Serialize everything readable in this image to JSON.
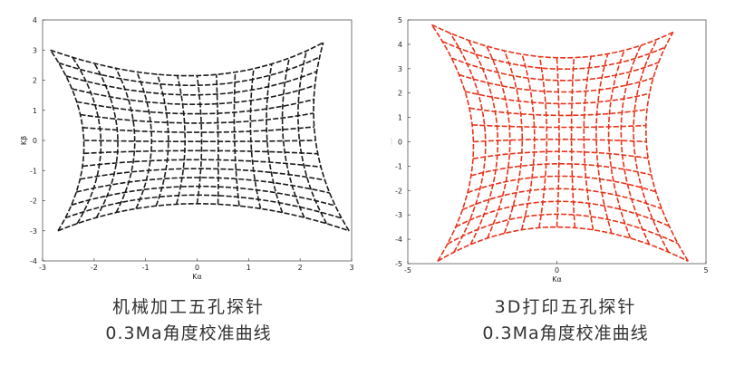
{
  "chart_data": [
    {
      "type": "line",
      "id": "left",
      "color": "#1a1a1a",
      "xlabel": "Kα",
      "ylabel": "Kβ",
      "xlim": [
        -3,
        3
      ],
      "ylim": [
        -4,
        4
      ],
      "xticks": [
        "-3",
        "-2",
        "-1",
        "0",
        "1",
        "2",
        "3"
      ],
      "yticks": [
        "-4",
        "-3",
        "-2",
        "-1",
        "0",
        "1",
        "2",
        "3",
        "4"
      ],
      "grid_lines": "15 × 15 dashed calibration grid (concave upper and lower edges)",
      "corners": {
        "top_left": [
          -2.85,
          3.0
        ],
        "top_right": [
          2.45,
          3.25
        ],
        "bottom_left": [
          -2.7,
          -3.0
        ],
        "bottom_right": [
          2.95,
          -3.0
        ]
      },
      "edge_centers": {
        "top": [
          0,
          2.15
        ],
        "bottom": [
          0,
          -2.1
        ],
        "left": [
          -2.2,
          0
        ],
        "right": [
          2.3,
          0
        ]
      },
      "caption_line1": "机械加工五孔探针",
      "caption_line2": "0.3Ma角度校准曲线"
    },
    {
      "type": "line",
      "id": "right",
      "color": "#e8321a",
      "xlabel": "Kα",
      "ylabel": "",
      "xlim": [
        -5,
        5
      ],
      "ylim": [
        -5,
        5
      ],
      "xticks": [
        "-5",
        "0",
        "5"
      ],
      "yticks": [
        "-5",
        "-4",
        "-3",
        "-2",
        "-1",
        "0",
        "1",
        "2",
        "3",
        "4",
        "5"
      ],
      "grid_lines": "15 × 15 dashed calibration grid (concave on all four edges)",
      "corners": {
        "top_left": [
          -4.2,
          4.8
        ],
        "top_right": [
          3.9,
          4.5
        ],
        "bottom_left": [
          -4.0,
          -4.9
        ],
        "bottom_right": [
          4.4,
          -4.9
        ]
      },
      "edge_centers": {
        "top": [
          0,
          3.45
        ],
        "bottom": [
          0,
          -3.5
        ],
        "left": [
          -2.8,
          0
        ],
        "right": [
          3.0,
          0
        ]
      },
      "caption_line1": "3D打印五孔探针",
      "caption_line2": "0.3Ma角度校准曲线"
    }
  ]
}
